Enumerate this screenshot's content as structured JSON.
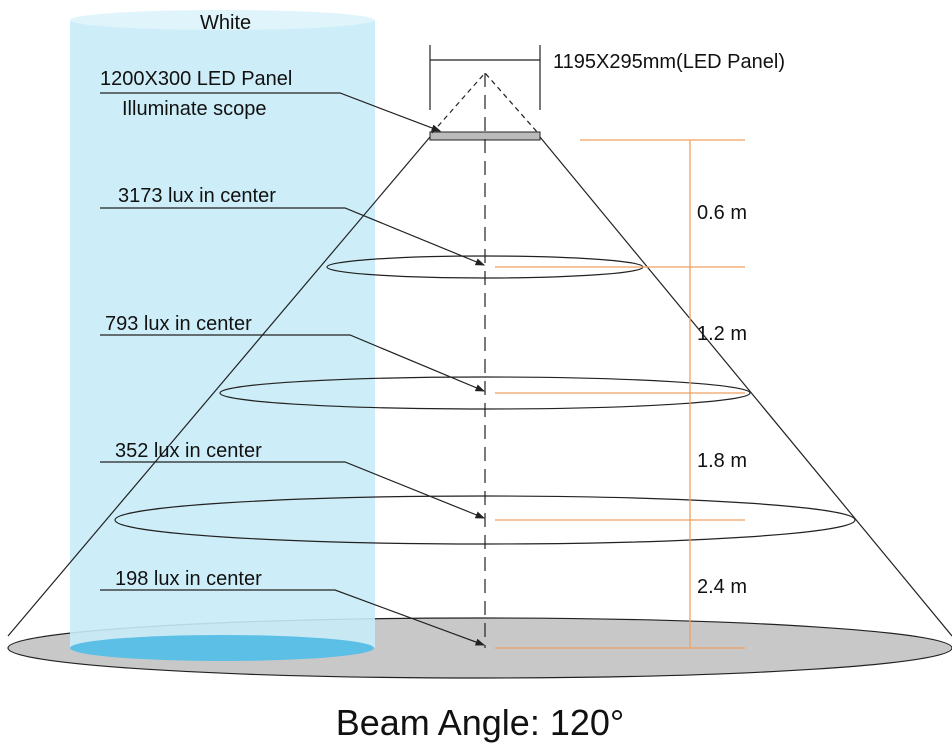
{
  "cylinder_label": "White",
  "panel_label": "1200X300 LED Panel",
  "scope_label": "Illuminate scope",
  "dimension_label": "1195X295mm(LED Panel)",
  "levels": [
    {
      "lux": "3173 lux in center",
      "distance": "0.6 m"
    },
    {
      "lux": "793 lux in center",
      "distance": "1.2 m"
    },
    {
      "lux": "352 lux in center",
      "distance": "1.8 m"
    },
    {
      "lux": "198 lux in center",
      "distance": "2.4 m"
    }
  ],
  "footer": "Beam Angle: 120°"
}
